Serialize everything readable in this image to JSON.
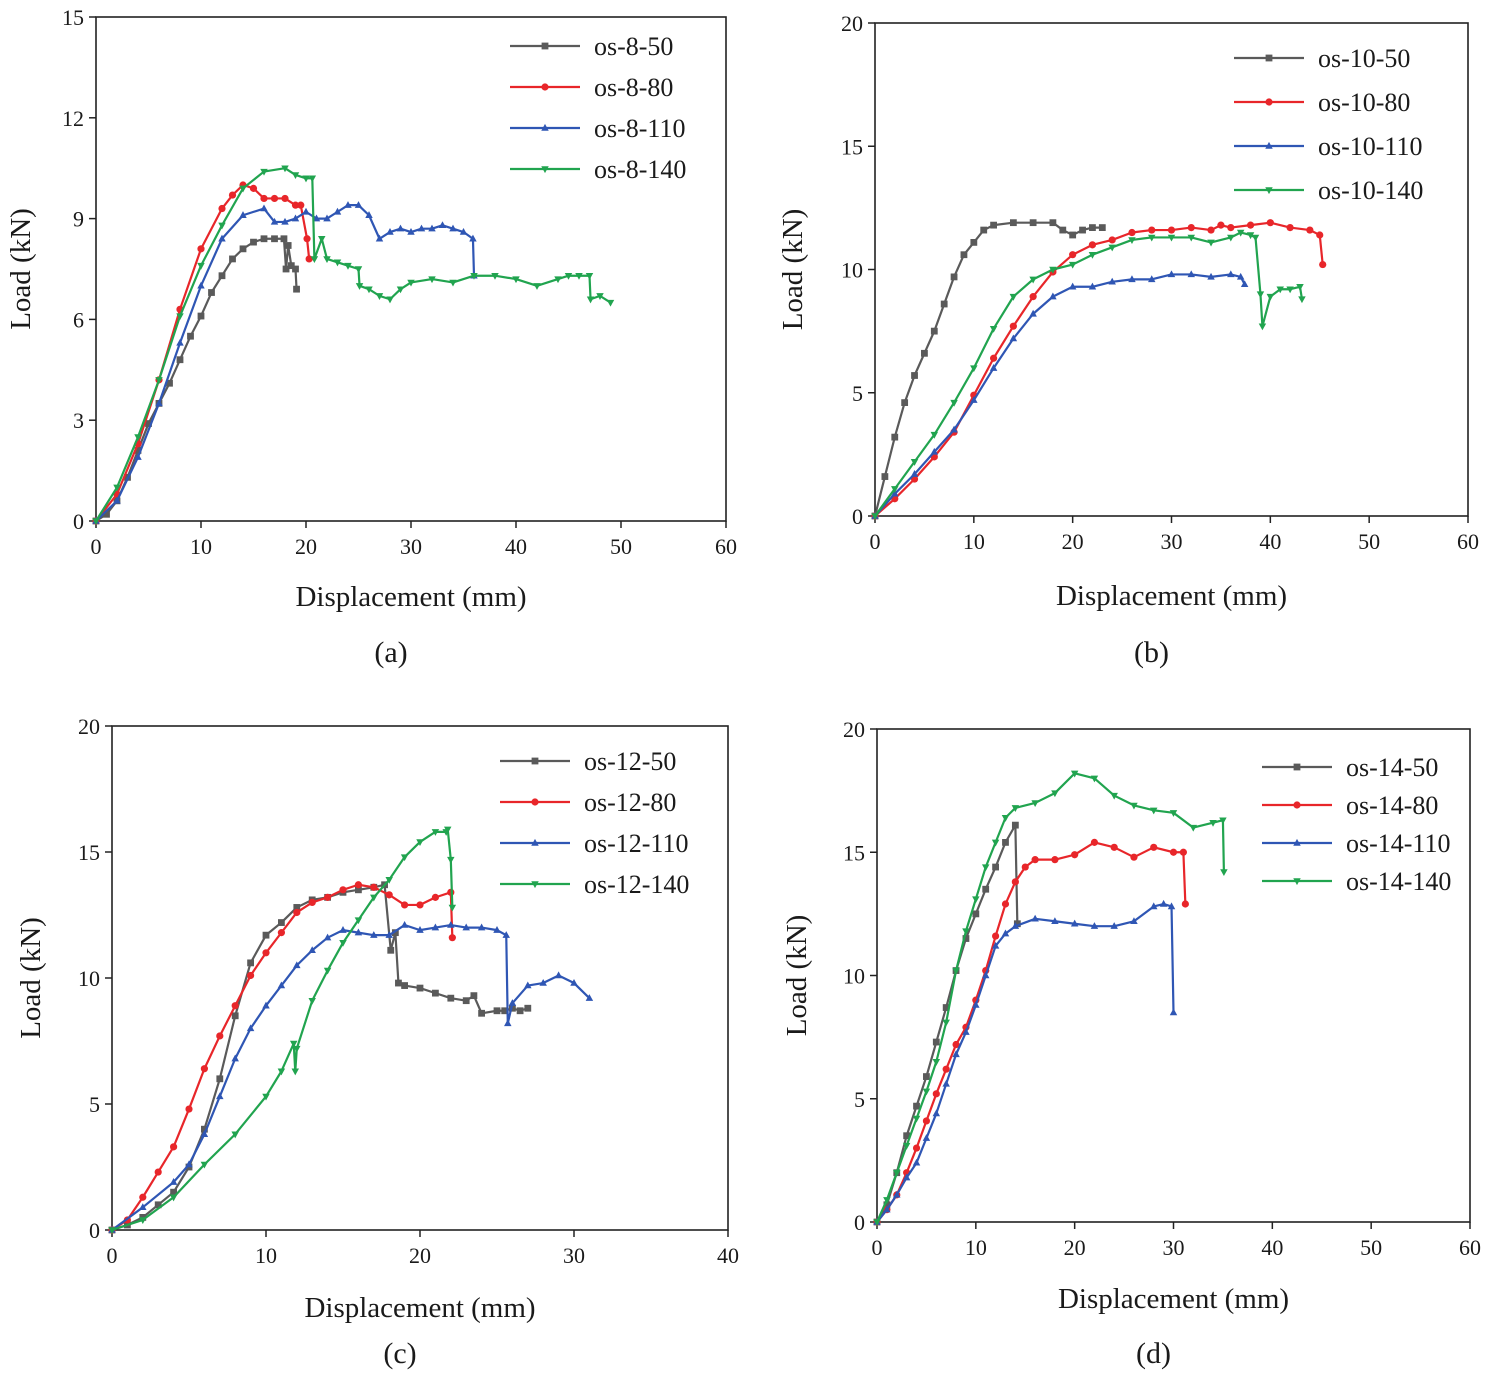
{
  "chart_data": [
    {
      "type": "line",
      "panel_label": "(a)",
      "xlabel": "Displacement (mm)",
      "ylabel": "Load (kN)",
      "xlim": [
        0,
        60
      ],
      "ylim": [
        0,
        15
      ],
      "xticks": [
        0,
        10,
        20,
        30,
        40,
        50,
        60
      ],
      "yticks": [
        0,
        3,
        6,
        9,
        12,
        15
      ],
      "legend_position": "top-right",
      "series": [
        {
          "name": "os-8-50",
          "color": "#5a5a5a",
          "marker": "square",
          "x": [
            0,
            1,
            2,
            3,
            4,
            5,
            6,
            7,
            8,
            9,
            10,
            11,
            12,
            13,
            14,
            15,
            16,
            17,
            17.9,
            18.1,
            18.3,
            18.6,
            19.0,
            19.1
          ],
          "y": [
            0,
            0.2,
            0.6,
            1.3,
            2.1,
            2.9,
            3.5,
            4.1,
            4.8,
            5.5,
            6.1,
            6.8,
            7.3,
            7.8,
            8.1,
            8.3,
            8.4,
            8.4,
            8.4,
            7.5,
            8.2,
            7.6,
            7.5,
            6.9
          ]
        },
        {
          "name": "os-8-80",
          "color": "#e8262a",
          "marker": "circle",
          "x": [
            0,
            2,
            4,
            6,
            8,
            10,
            12,
            13,
            14,
            15,
            16,
            17,
            18,
            19,
            19.5,
            20.1,
            20.3
          ],
          "y": [
            0,
            0.8,
            2.3,
            4.2,
            6.3,
            8.1,
            9.3,
            9.7,
            10.0,
            9.9,
            9.6,
            9.6,
            9.6,
            9.4,
            9.4,
            8.4,
            7.8
          ]
        },
        {
          "name": "os-8-110",
          "color": "#2f56b4",
          "marker": "triangle-up",
          "x": [
            0,
            2,
            4,
            6,
            8,
            10,
            12,
            14,
            16,
            17,
            18,
            19,
            20,
            21,
            22,
            23,
            24,
            25,
            26,
            27,
            28,
            29,
            30,
            31,
            32,
            33,
            34,
            35,
            35.9,
            36.0
          ],
          "y": [
            0,
            0.6,
            1.9,
            3.5,
            5.3,
            7.0,
            8.4,
            9.1,
            9.3,
            8.9,
            8.9,
            9.0,
            9.2,
            9.0,
            9.0,
            9.2,
            9.4,
            9.4,
            9.1,
            8.4,
            8.6,
            8.7,
            8.6,
            8.7,
            8.7,
            8.8,
            8.7,
            8.6,
            8.4,
            7.3
          ]
        },
        {
          "name": "os-8-140",
          "color": "#21a44f",
          "marker": "triangle-down",
          "x": [
            0,
            2,
            4,
            6,
            8,
            10,
            12,
            14,
            16,
            18,
            19,
            20,
            20.6,
            20.8,
            21.5,
            22,
            23,
            24,
            25,
            25.1,
            26,
            27,
            28,
            29,
            30,
            32,
            34,
            36,
            38,
            40,
            42,
            44,
            45,
            46,
            47,
            47.1,
            48,
            49
          ],
          "y": [
            0,
            1.0,
            2.5,
            4.2,
            6.1,
            7.6,
            8.8,
            9.9,
            10.4,
            10.5,
            10.3,
            10.2,
            10.2,
            7.8,
            8.4,
            7.8,
            7.7,
            7.6,
            7.5,
            7.0,
            6.9,
            6.7,
            6.6,
            6.9,
            7.1,
            7.2,
            7.1,
            7.3,
            7.3,
            7.2,
            7.0,
            7.2,
            7.3,
            7.3,
            7.3,
            6.6,
            6.7,
            6.5
          ]
        }
      ]
    },
    {
      "type": "line",
      "panel_label": "(b)",
      "xlabel": "Displacement (mm)",
      "ylabel": "Load (kN)",
      "xlim": [
        0,
        60
      ],
      "ylim": [
        0,
        20
      ],
      "xticks": [
        0,
        10,
        20,
        30,
        40,
        50,
        60
      ],
      "yticks": [
        0,
        5,
        10,
        15,
        20
      ],
      "legend_position": "top-right",
      "series": [
        {
          "name": "os-10-50",
          "color": "#5a5a5a",
          "marker": "square",
          "x": [
            0,
            1,
            2,
            3,
            4,
            5,
            6,
            7,
            8,
            9,
            10,
            11,
            12,
            14,
            16,
            18,
            19,
            20,
            21,
            22,
            23
          ],
          "y": [
            0,
            1.6,
            3.2,
            4.6,
            5.7,
            6.6,
            7.5,
            8.6,
            9.7,
            10.6,
            11.1,
            11.6,
            11.8,
            11.9,
            11.9,
            11.9,
            11.6,
            11.4,
            11.6,
            11.7,
            11.7
          ]
        },
        {
          "name": "os-10-80",
          "color": "#e8262a",
          "marker": "circle",
          "x": [
            0,
            2,
            4,
            6,
            8,
            10,
            12,
            14,
            16,
            18,
            20,
            22,
            24,
            26,
            28,
            30,
            32,
            34,
            35,
            36,
            38,
            40,
            42,
            44,
            45,
            45.3
          ],
          "y": [
            0,
            0.7,
            1.5,
            2.4,
            3.4,
            4.9,
            6.4,
            7.7,
            8.9,
            9.9,
            10.6,
            11.0,
            11.2,
            11.5,
            11.6,
            11.6,
            11.7,
            11.6,
            11.8,
            11.7,
            11.8,
            11.9,
            11.7,
            11.6,
            11.4,
            10.2
          ]
        },
        {
          "name": "os-10-110",
          "color": "#2f56b4",
          "marker": "triangle-up",
          "x": [
            0,
            2,
            4,
            6,
            8,
            10,
            12,
            14,
            16,
            18,
            20,
            22,
            24,
            26,
            28,
            30,
            32,
            34,
            36,
            37,
            37.4
          ],
          "y": [
            0,
            0.9,
            1.7,
            2.6,
            3.5,
            4.7,
            6.0,
            7.2,
            8.2,
            8.9,
            9.3,
            9.3,
            9.5,
            9.6,
            9.6,
            9.8,
            9.8,
            9.7,
            9.8,
            9.7,
            9.4
          ]
        },
        {
          "name": "os-10-140",
          "color": "#21a44f",
          "marker": "triangle-down",
          "x": [
            0,
            2,
            4,
            6,
            8,
            10,
            12,
            14,
            16,
            18,
            20,
            22,
            24,
            26,
            28,
            30,
            32,
            34,
            36,
            37,
            38,
            38.5,
            39,
            39.2,
            40,
            41,
            42,
            43,
            43.2
          ],
          "y": [
            0,
            1.1,
            2.2,
            3.3,
            4.6,
            6.0,
            7.6,
            8.9,
            9.6,
            10.0,
            10.2,
            10.6,
            10.9,
            11.2,
            11.3,
            11.3,
            11.3,
            11.1,
            11.3,
            11.5,
            11.4,
            11.3,
            9.0,
            7.7,
            8.9,
            9.2,
            9.2,
            9.3,
            8.8
          ]
        }
      ]
    },
    {
      "type": "line",
      "panel_label": "(c)",
      "xlabel": "Displacement (mm)",
      "ylabel": "Load (kN)",
      "xlim": [
        0,
        40
      ],
      "ylim": [
        0,
        20
      ],
      "xticks": [
        0,
        10,
        20,
        30,
        40
      ],
      "yticks": [
        0,
        5,
        10,
        15,
        20
      ],
      "legend_position": "top-right",
      "series": [
        {
          "name": "os-12-50",
          "color": "#5a5a5a",
          "marker": "square",
          "x": [
            0,
            1,
            2,
            3,
            4,
            5,
            6,
            7,
            8,
            9,
            10,
            11,
            12,
            13,
            14,
            15,
            16,
            17,
            17.7,
            18.1,
            18.4,
            18.6,
            19,
            20,
            21,
            22,
            23,
            23.5,
            24,
            25,
            25.5,
            26,
            26.5,
            27
          ],
          "y": [
            0,
            0.2,
            0.5,
            1.0,
            1.5,
            2.5,
            4.0,
            6.0,
            8.5,
            10.6,
            11.7,
            12.2,
            12.8,
            13.1,
            13.2,
            13.4,
            13.5,
            13.6,
            13.7,
            11.1,
            11.8,
            9.8,
            9.7,
            9.6,
            9.4,
            9.2,
            9.1,
            9.3,
            8.6,
            8.7,
            8.7,
            8.8,
            8.7,
            8.8
          ]
        },
        {
          "name": "os-12-80",
          "color": "#e8262a",
          "marker": "circle",
          "x": [
            0,
            1,
            2,
            3,
            4,
            5,
            6,
            7,
            8,
            9,
            10,
            11,
            12,
            13,
            14,
            15,
            16,
            17,
            18,
            19,
            20,
            21,
            22,
            22.1
          ],
          "y": [
            0,
            0.4,
            1.3,
            2.3,
            3.3,
            4.8,
            6.4,
            7.7,
            8.9,
            10.1,
            11.0,
            11.8,
            12.6,
            13.0,
            13.2,
            13.5,
            13.7,
            13.6,
            13.3,
            12.9,
            12.9,
            13.2,
            13.4,
            11.6
          ]
        },
        {
          "name": "os-12-110",
          "color": "#2f56b4",
          "marker": "triangle-up",
          "x": [
            0,
            2,
            4,
            5,
            6,
            7,
            8,
            9,
            10,
            11,
            12,
            13,
            14,
            15,
            16,
            17,
            18,
            19,
            20,
            21,
            22,
            23,
            24,
            25,
            25.6,
            25.7,
            26,
            27,
            28,
            29,
            30,
            31
          ],
          "y": [
            0,
            0.9,
            1.9,
            2.6,
            3.8,
            5.3,
            6.8,
            8.0,
            8.9,
            9.7,
            10.5,
            11.1,
            11.6,
            11.9,
            11.8,
            11.7,
            11.7,
            12.1,
            11.9,
            12.0,
            12.1,
            12.0,
            12.0,
            11.9,
            11.7,
            8.2,
            9.0,
            9.7,
            9.8,
            10.1,
            9.8,
            9.2
          ]
        },
        {
          "name": "os-12-140",
          "color": "#21a44f",
          "marker": "triangle-down",
          "x": [
            0,
            2,
            4,
            6,
            8,
            10,
            11,
            11.8,
            11.9,
            12,
            13,
            14,
            15,
            16,
            17,
            18,
            19,
            20,
            21,
            21.7,
            21.8,
            22,
            22.1
          ],
          "y": [
            0,
            0.4,
            1.3,
            2.6,
            3.8,
            5.3,
            6.3,
            7.4,
            6.3,
            7.2,
            9.1,
            10.3,
            11.4,
            12.3,
            13.2,
            13.9,
            14.8,
            15.4,
            15.8,
            15.8,
            15.9,
            14.7,
            12.8
          ]
        }
      ]
    },
    {
      "type": "line",
      "panel_label": "(d)",
      "xlabel": "Displacement (mm)",
      "ylabel": "Load (kN)",
      "xlim": [
        0,
        60
      ],
      "ylim": [
        0,
        20
      ],
      "xticks": [
        0,
        10,
        20,
        30,
        40,
        50,
        60
      ],
      "yticks": [
        0,
        5,
        10,
        15,
        20
      ],
      "legend_position": "top-right",
      "series": [
        {
          "name": "os-14-50",
          "color": "#5a5a5a",
          "marker": "square",
          "x": [
            0,
            1,
            2,
            3,
            4,
            5,
            6,
            7,
            8,
            9,
            10,
            11,
            12,
            13,
            14,
            14.2
          ],
          "y": [
            0,
            0.7,
            2.0,
            3.5,
            4.7,
            5.9,
            7.3,
            8.7,
            10.2,
            11.5,
            12.5,
            13.5,
            14.4,
            15.4,
            16.1,
            12.1
          ]
        },
        {
          "name": "os-14-80",
          "color": "#e8262a",
          "marker": "circle",
          "x": [
            0,
            1,
            2,
            3,
            4,
            5,
            6,
            7,
            8,
            9,
            10,
            11,
            12,
            13,
            14,
            15,
            16,
            18,
            20,
            22,
            24,
            26,
            28,
            30,
            31,
            31.2
          ],
          "y": [
            0,
            0.5,
            1.1,
            2.0,
            3.0,
            4.1,
            5.2,
            6.2,
            7.2,
            7.9,
            9.0,
            10.2,
            11.6,
            12.9,
            13.8,
            14.4,
            14.7,
            14.7,
            14.9,
            15.4,
            15.2,
            14.8,
            15.2,
            15.0,
            15.0,
            12.9
          ]
        },
        {
          "name": "os-14-110",
          "color": "#2f56b4",
          "marker": "triangle-up",
          "x": [
            0,
            1,
            2,
            3,
            4,
            5,
            6,
            7,
            8,
            9,
            10,
            11,
            12,
            13,
            14,
            16,
            18,
            20,
            22,
            24,
            26,
            28,
            29,
            29.8,
            30
          ],
          "y": [
            0,
            0.5,
            1.1,
            1.8,
            2.4,
            3.4,
            4.4,
            5.6,
            6.8,
            7.7,
            8.8,
            10.0,
            11.2,
            11.7,
            12.0,
            12.3,
            12.2,
            12.1,
            12.0,
            12.0,
            12.2,
            12.8,
            12.9,
            12.8,
            8.5
          ]
        },
        {
          "name": "os-14-140",
          "color": "#21a44f",
          "marker": "triangle-down",
          "x": [
            0,
            1,
            2,
            3,
            4,
            5,
            6,
            7,
            8,
            9,
            10,
            11,
            12,
            13,
            14,
            16,
            18,
            20,
            22,
            24,
            26,
            28,
            30,
            32,
            34,
            35,
            35.1
          ],
          "y": [
            0,
            0.9,
            2.0,
            3.1,
            4.2,
            5.3,
            6.5,
            8.1,
            10.2,
            11.8,
            13.1,
            14.4,
            15.4,
            16.4,
            16.8,
            17.0,
            17.4,
            18.2,
            18.0,
            17.3,
            16.9,
            16.7,
            16.6,
            16.0,
            16.2,
            16.3,
            14.2
          ]
        }
      ]
    }
  ]
}
